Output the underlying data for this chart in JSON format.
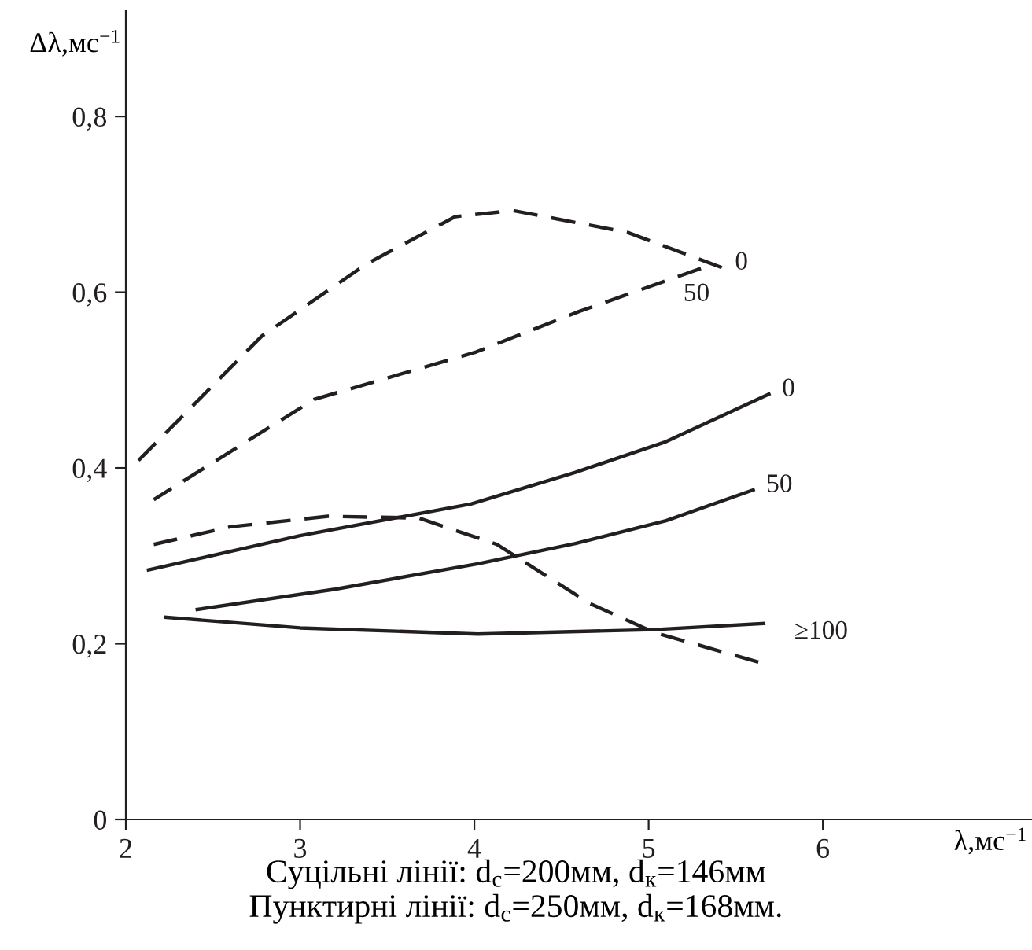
{
  "chart_data": {
    "type": "line",
    "xlabel": "λ,мс$^{−1}$",
    "ylabel": "Δλ,мс$^{−1}$",
    "xlim": [
      2,
      7.2
    ],
    "ylim": [
      0,
      0.92
    ],
    "xticks": [
      2,
      3,
      4,
      5,
      6
    ],
    "yticks": [
      0,
      {
        "value": 0.2,
        "label": "0,2"
      },
      {
        "value": 0.4,
        "label": "0,4"
      },
      {
        "value": 0.6,
        "label": "0,6"
      },
      {
        "value": 0.8,
        "label": "0,8"
      }
    ],
    "grid": false,
    "legend": false,
    "marker": "none",
    "series": [
      {
        "name": "0",
        "color": "#231f20",
        "line_style": "dashed",
        "x": [
          2.03,
          2.27,
          2.78,
          3.38,
          3.89,
          4.22,
          4.88,
          5.42
        ],
        "values": [
          0.4,
          0.448,
          0.55,
          0.632,
          0.686,
          0.693,
          0.668,
          0.628
        ]
      },
      {
        "name": "50",
        "color": "#231f20",
        "line_style": "dashed",
        "x": [
          2.16,
          3.08,
          4.01,
          4.6,
          5.3
        ],
        "values": [
          0.364,
          0.478,
          0.532,
          0.578,
          0.627
        ]
      },
      {
        "name": "0",
        "color": "#231f20",
        "line_style": "solid",
        "x": [
          2.13,
          3.0,
          3.98,
          4.58,
          5.1,
          5.69
        ],
        "values": [
          0.284,
          0.323,
          0.359,
          0.395,
          0.43,
          0.484
        ]
      },
      {
        "name": "50",
        "color": "#231f20",
        "line_style": "solid",
        "x": [
          2.41,
          3.2,
          4.02,
          4.58,
          5.1,
          5.6
        ],
        "values": [
          0.239,
          0.262,
          0.291,
          0.314,
          0.34,
          0.375
        ]
      },
      {
        "name": "≥100",
        "color": "#231f20",
        "line_style": "solid",
        "x": [
          2.23,
          3.0,
          4.02,
          5.03,
          5.66
        ],
        "values": [
          0.23,
          0.218,
          0.211,
          0.216,
          0.223
        ]
      },
      {
        "color": "#231f20",
        "line_style": "dashed",
        "x": [
          2.16,
          2.6,
          3.16,
          3.68,
          4.13,
          4.66,
          5.03,
          5.63
        ],
        "values": [
          0.313,
          0.333,
          0.345,
          0.343,
          0.313,
          0.246,
          0.213,
          0.179
        ]
      }
    ],
    "annotations": [
      "Суцільні лінії: d$_{с}$=200мм, d$_{к}$=146мм",
      "Пунктирні лінії: d$_{с}$=250мм, d$_{к}$=168мм."
    ]
  }
}
